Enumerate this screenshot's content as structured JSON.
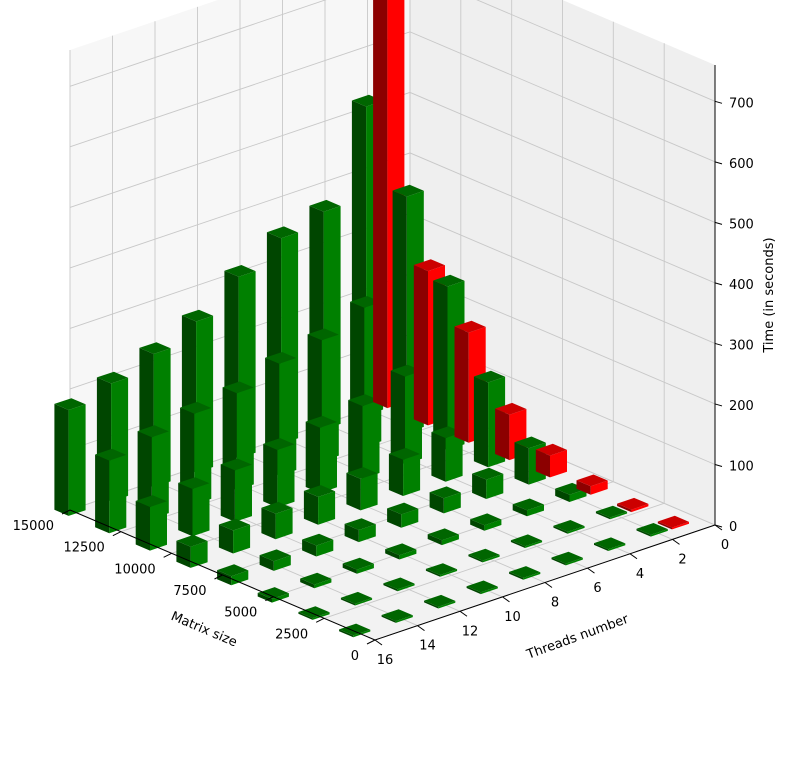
{
  "chart_data": {
    "type": "bar3d",
    "zlabel": "Time (in seconds)",
    "xlabel": "Matrix size",
    "ylabel": "Threads number",
    "x_ticks": [
      "0",
      "2500",
      "5000",
      "7500",
      "10000",
      "12500",
      "15000"
    ],
    "y_ticks": [
      "0",
      "2",
      "4",
      "6",
      "8",
      "10",
      "12",
      "14",
      "16"
    ],
    "z_ticks": [
      "0",
      "100",
      "200",
      "300",
      "400",
      "500",
      "600",
      "700"
    ],
    "xlim": [
      0,
      15000
    ],
    "ylim": [
      0,
      16
    ],
    "zlim": [
      0,
      760
    ],
    "grid": true,
    "colors": {
      "single_thread": "#ff0000",
      "multi_thread": "#008000",
      "pane_left": "#f7f7f7",
      "pane_right": "#efefef",
      "floor": "#f2f2f2",
      "grid": "#c8c8c8"
    },
    "matrix_sizes": [
      1000,
      3000,
      5000,
      7000,
      9000,
      11000,
      13000,
      15000
    ],
    "threads": [
      1,
      2,
      4,
      6,
      8,
      10,
      12,
      14,
      16
    ],
    "times": {
      "1": [
        0.5,
        4,
        14,
        36,
        75,
        182,
        255,
        745
      ],
      "2": [
        0.3,
        3,
        12,
        60,
        140,
        270,
        390,
        510
      ],
      "4": [
        0.3,
        2,
        10,
        32,
        72,
        145,
        230,
        360
      ],
      "6": [
        0.3,
        2,
        9,
        25,
        60,
        120,
        200,
        340
      ],
      "8": [
        0.2,
        2,
        8,
        22,
        52,
        108,
        185,
        300
      ],
      "10": [
        0.2,
        2,
        7,
        20,
        46,
        95,
        160,
        250
      ],
      "12": [
        0.2,
        2,
        7,
        18,
        42,
        85,
        150,
        220
      ],
      "14": [
        0.2,
        2,
        6,
        16,
        38,
        78,
        135,
        195
      ],
      "16": [
        0.2,
        1.5,
        6,
        15,
        35,
        72,
        120,
        175
      ]
    }
  }
}
